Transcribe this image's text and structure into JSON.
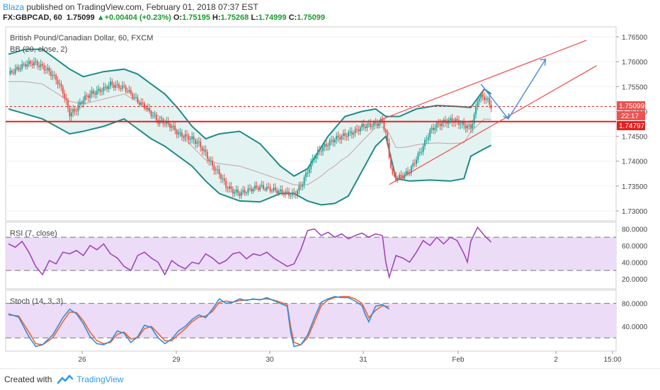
{
  "header": {
    "author": "Blaza",
    "published_text": " published on TradingView.com, February 01, 2018 07:37 EST",
    "symbol": "FX:GBPCAD, 60",
    "last": "1.75099",
    "change": "+0.00404 (+0.23%)",
    "o_label": "O:",
    "o_value": "1.75195",
    "h_label": "H:",
    "h_value": "1.75268",
    "l_label": "L:",
    "l_value": "1.74999",
    "c_label": "C:",
    "c_value": "1.75099"
  },
  "legend": {
    "pair": "British Pound/Canadian Dollar, 60, FXCM",
    "bb": "BB (20, close, 2)",
    "rsi": "RSI (7, close)",
    "stoch": "Stoch (14, 3, 3)"
  },
  "price_axis": [
    "1.76500",
    "1.76000",
    "1.75500",
    "1.75000",
    "1.74500",
    "1.74000",
    "1.73500",
    "1.73000"
  ],
  "price_badges": {
    "last": "1.75099",
    "countdown": "22:17",
    "level": "1.74797"
  },
  "rsi_axis": [
    "80.0000",
    "60.0000",
    "40.0000",
    "20.0000"
  ],
  "stoch_axis": [
    "80.0000",
    "40.0000"
  ],
  "time_axis": [
    "26",
    "29",
    "30",
    "31",
    "Feb",
    "2",
    "15:00"
  ],
  "footer": {
    "created": "Created with",
    "brand": "TradingView"
  },
  "colors": {
    "up": "#26a69a",
    "down": "#ef5350",
    "bb_band": "#1e8a88",
    "bb_fill": "#e3f3f1",
    "bb_basis": "#c8a1a1",
    "support": "#e6201e",
    "channel": "#f04a4a",
    "arrow": "#4a8fd9",
    "rsi_line": "#9b3fb5",
    "rsi_fill": "#ecdcf7",
    "stoch_k": "#2d8de0",
    "stoch_d": "#f2632f"
  },
  "chart_data": {
    "type": "candlestick",
    "symbol": "FX:GBPCAD",
    "timeframe": "60",
    "yrange": [
      1.728,
      1.767
    ],
    "key_levels": {
      "support": 1.74797,
      "last": 1.75099
    },
    "close_path": [
      [
        0,
        1.7575
      ],
      [
        5,
        1.7585
      ],
      [
        10,
        1.7595
      ],
      [
        15,
        1.7598
      ],
      [
        20,
        1.759
      ],
      [
        24,
        1.758
      ],
      [
        28,
        1.7565
      ],
      [
        32,
        1.754
      ],
      [
        36,
        1.7495
      ],
      [
        40,
        1.7505
      ],
      [
        44,
        1.7525
      ],
      [
        48,
        1.7535
      ],
      [
        52,
        1.754
      ],
      [
        56,
        1.7545
      ],
      [
        60,
        1.7555
      ],
      [
        64,
        1.755
      ],
      [
        68,
        1.7548
      ],
      [
        72,
        1.7535
      ],
      [
        76,
        1.752
      ],
      [
        80,
        1.751
      ],
      [
        84,
        1.7495
      ],
      [
        88,
        1.748
      ],
      [
        92,
        1.7478
      ],
      [
        96,
        1.747
      ],
      [
        100,
        1.7455
      ],
      [
        104,
        1.745
      ],
      [
        108,
        1.7445
      ],
      [
        112,
        1.7435
      ],
      [
        116,
        1.7415
      ],
      [
        120,
        1.739
      ],
      [
        124,
        1.7375
      ],
      [
        128,
        1.735
      ],
      [
        132,
        1.734
      ],
      [
        136,
        1.7335
      ],
      [
        140,
        1.734
      ],
      [
        144,
        1.7345
      ],
      [
        148,
        1.7348
      ],
      [
        152,
        1.7345
      ],
      [
        156,
        1.7342
      ],
      [
        160,
        1.7338
      ],
      [
        164,
        1.7335
      ],
      [
        168,
        1.7332
      ],
      [
        172,
        1.735
      ],
      [
        176,
        1.738
      ],
      [
        180,
        1.741
      ],
      [
        184,
        1.7425
      ],
      [
        188,
        1.7435
      ],
      [
        192,
        1.7445
      ],
      [
        196,
        1.745
      ],
      [
        200,
        1.7455
      ],
      [
        204,
        1.746
      ],
      [
        208,
        1.747
      ],
      [
        212,
        1.7472
      ],
      [
        216,
        1.7474
      ],
      [
        220,
        1.748
      ],
      [
        222,
        1.7455
      ],
      [
        224,
        1.741
      ],
      [
        226,
        1.737
      ],
      [
        228,
        1.7365
      ],
      [
        232,
        1.737
      ],
      [
        236,
        1.738
      ],
      [
        240,
        1.7405
      ],
      [
        244,
        1.743
      ],
      [
        248,
        1.746
      ],
      [
        252,
        1.7473
      ],
      [
        256,
        1.7478
      ],
      [
        260,
        1.7482
      ],
      [
        264,
        1.748
      ],
      [
        268,
        1.7472
      ],
      [
        272,
        1.7468
      ],
      [
        274,
        1.749
      ],
      [
        276,
        1.7525
      ],
      [
        278,
        1.753
      ],
      [
        280,
        1.7528
      ],
      [
        282,
        1.7522
      ],
      [
        284,
        1.751
      ]
    ],
    "bb_upper": [
      [
        0,
        1.7615
      ],
      [
        10,
        1.7625
      ],
      [
        20,
        1.7625
      ],
      [
        28,
        1.7605
      ],
      [
        36,
        1.7585
      ],
      [
        44,
        1.757
      ],
      [
        56,
        1.758
      ],
      [
        68,
        1.7585
      ],
      [
        76,
        1.7575
      ],
      [
        84,
        1.7555
      ],
      [
        92,
        1.7535
      ],
      [
        100,
        1.7505
      ],
      [
        108,
        1.747
      ],
      [
        116,
        1.7445
      ],
      [
        124,
        1.7455
      ],
      [
        136,
        1.746
      ],
      [
        148,
        1.7435
      ],
      [
        160,
        1.739
      ],
      [
        168,
        1.737
      ],
      [
        176,
        1.7385
      ],
      [
        188,
        1.745
      ],
      [
        198,
        1.749
      ],
      [
        208,
        1.75
      ],
      [
        216,
        1.7505
      ],
      [
        222,
        1.749
      ],
      [
        230,
        1.749
      ],
      [
        240,
        1.7505
      ],
      [
        252,
        1.7512
      ],
      [
        264,
        1.751
      ],
      [
        272,
        1.7508
      ],
      [
        280,
        1.7545
      ],
      [
        284,
        1.7535
      ]
    ],
    "bb_lower": [
      [
        0,
        1.7505
      ],
      [
        10,
        1.7495
      ],
      [
        20,
        1.7485
      ],
      [
        28,
        1.747
      ],
      [
        36,
        1.7455
      ],
      [
        44,
        1.746
      ],
      [
        56,
        1.747
      ],
      [
        68,
        1.7485
      ],
      [
        76,
        1.7465
      ],
      [
        84,
        1.7445
      ],
      [
        92,
        1.743
      ],
      [
        100,
        1.741
      ],
      [
        108,
        1.739
      ],
      [
        116,
        1.736
      ],
      [
        124,
        1.7335
      ],
      [
        136,
        1.732
      ],
      [
        148,
        1.7318
      ],
      [
        160,
        1.7335
      ],
      [
        168,
        1.7335
      ],
      [
        176,
        1.732
      ],
      [
        184,
        1.7312
      ],
      [
        192,
        1.7315
      ],
      [
        200,
        1.733
      ],
      [
        208,
        1.738
      ],
      [
        216,
        1.743
      ],
      [
        222,
        1.745
      ],
      [
        228,
        1.7365
      ],
      [
        236,
        1.736
      ],
      [
        248,
        1.7362
      ],
      [
        260,
        1.736
      ],
      [
        268,
        1.7365
      ],
      [
        272,
        1.741
      ],
      [
        280,
        1.7425
      ],
      [
        284,
        1.7432
      ]
    ],
    "rsi": [
      [
        0,
        62
      ],
      [
        4,
        58
      ],
      [
        8,
        65
      ],
      [
        12,
        52
      ],
      [
        16,
        35
      ],
      [
        20,
        25
      ],
      [
        24,
        42
      ],
      [
        28,
        38
      ],
      [
        32,
        52
      ],
      [
        36,
        50
      ],
      [
        40,
        54
      ],
      [
        44,
        48
      ],
      [
        48,
        60
      ],
      [
        52,
        55
      ],
      [
        56,
        62
      ],
      [
        60,
        50
      ],
      [
        64,
        45
      ],
      [
        68,
        35
      ],
      [
        72,
        30
      ],
      [
        76,
        48
      ],
      [
        80,
        52
      ],
      [
        84,
        45
      ],
      [
        88,
        40
      ],
      [
        92,
        25
      ],
      [
        96,
        42
      ],
      [
        100,
        36
      ],
      [
        104,
        32
      ],
      [
        108,
        40
      ],
      [
        112,
        38
      ],
      [
        116,
        50
      ],
      [
        120,
        45
      ],
      [
        124,
        38
      ],
      [
        128,
        42
      ],
      [
        132,
        50
      ],
      [
        136,
        52
      ],
      [
        140,
        44
      ],
      [
        144,
        50
      ],
      [
        148,
        48
      ],
      [
        152,
        52
      ],
      [
        156,
        45
      ],
      [
        160,
        40
      ],
      [
        164,
        35
      ],
      [
        168,
        38
      ],
      [
        172,
        55
      ],
      [
        176,
        78
      ],
      [
        180,
        80
      ],
      [
        184,
        72
      ],
      [
        188,
        76
      ],
      [
        192,
        70
      ],
      [
        196,
        74
      ],
      [
        200,
        68
      ],
      [
        204,
        72
      ],
      [
        208,
        75
      ],
      [
        212,
        70
      ],
      [
        216,
        74
      ],
      [
        220,
        72
      ],
      [
        222,
        40
      ],
      [
        224,
        22
      ],
      [
        226,
        35
      ],
      [
        228,
        48
      ],
      [
        232,
        45
      ],
      [
        236,
        40
      ],
      [
        240,
        52
      ],
      [
        244,
        66
      ],
      [
        248,
        60
      ],
      [
        252,
        70
      ],
      [
        256,
        62
      ],
      [
        260,
        70
      ],
      [
        264,
        66
      ],
      [
        268,
        50
      ],
      [
        270,
        40
      ],
      [
        272,
        65
      ],
      [
        276,
        82
      ],
      [
        280,
        72
      ],
      [
        284,
        64
      ]
    ],
    "stoch_k": [
      [
        0,
        62
      ],
      [
        6,
        56
      ],
      [
        12,
        22
      ],
      [
        16,
        5
      ],
      [
        20,
        8
      ],
      [
        26,
        25
      ],
      [
        32,
        55
      ],
      [
        36,
        70
      ],
      [
        40,
        62
      ],
      [
        44,
        45
      ],
      [
        48,
        22
      ],
      [
        52,
        10
      ],
      [
        56,
        8
      ],
      [
        60,
        14
      ],
      [
        64,
        32
      ],
      [
        68,
        28
      ],
      [
        72,
        12
      ],
      [
        76,
        22
      ],
      [
        80,
        42
      ],
      [
        84,
        38
      ],
      [
        88,
        20
      ],
      [
        92,
        10
      ],
      [
        96,
        18
      ],
      [
        100,
        32
      ],
      [
        104,
        40
      ],
      [
        108,
        52
      ],
      [
        112,
        60
      ],
      [
        116,
        55
      ],
      [
        120,
        70
      ],
      [
        124,
        88
      ],
      [
        128,
        80
      ],
      [
        132,
        82
      ],
      [
        136,
        88
      ],
      [
        140,
        85
      ],
      [
        144,
        88
      ],
      [
        148,
        86
      ],
      [
        152,
        90
      ],
      [
        156,
        85
      ],
      [
        160,
        80
      ],
      [
        164,
        75
      ],
      [
        166,
        30
      ],
      [
        168,
        5
      ],
      [
        172,
        8
      ],
      [
        176,
        25
      ],
      [
        180,
        55
      ],
      [
        184,
        82
      ],
      [
        188,
        88
      ],
      [
        192,
        92
      ],
      [
        196,
        90
      ],
      [
        200,
        90
      ],
      [
        204,
        84
      ],
      [
        208,
        76
      ],
      [
        210,
        60
      ],
      [
        212,
        48
      ],
      [
        216,
        75
      ],
      [
        220,
        78
      ],
      [
        224,
        70
      ]
    ],
    "stoch_d": [
      [
        0,
        60
      ],
      [
        6,
        58
      ],
      [
        12,
        30
      ],
      [
        16,
        10
      ],
      [
        20,
        8
      ],
      [
        26,
        20
      ],
      [
        32,
        48
      ],
      [
        36,
        65
      ],
      [
        40,
        64
      ],
      [
        44,
        50
      ],
      [
        48,
        30
      ],
      [
        52,
        15
      ],
      [
        56,
        10
      ],
      [
        60,
        12
      ],
      [
        64,
        26
      ],
      [
        68,
        30
      ],
      [
        72,
        18
      ],
      [
        76,
        20
      ],
      [
        80,
        36
      ],
      [
        84,
        40
      ],
      [
        88,
        28
      ],
      [
        92,
        15
      ],
      [
        96,
        15
      ],
      [
        100,
        26
      ],
      [
        104,
        36
      ],
      [
        108,
        48
      ],
      [
        112,
        56
      ],
      [
        116,
        58
      ],
      [
        120,
        66
      ],
      [
        124,
        82
      ],
      [
        128,
        84
      ],
      [
        132,
        82
      ],
      [
        136,
        85
      ],
      [
        140,
        86
      ],
      [
        144,
        87
      ],
      [
        148,
        87
      ],
      [
        152,
        88
      ],
      [
        156,
        86
      ],
      [
        160,
        82
      ],
      [
        164,
        78
      ],
      [
        166,
        40
      ],
      [
        168,
        12
      ],
      [
        172,
        8
      ],
      [
        176,
        20
      ],
      [
        180,
        48
      ],
      [
        184,
        76
      ],
      [
        188,
        86
      ],
      [
        192,
        90
      ],
      [
        196,
        92
      ],
      [
        200,
        92
      ],
      [
        204,
        88
      ],
      [
        208,
        80
      ],
      [
        210,
        68
      ],
      [
        212,
        55
      ],
      [
        216,
        68
      ],
      [
        220,
        76
      ],
      [
        224,
        74
      ]
    ]
  }
}
